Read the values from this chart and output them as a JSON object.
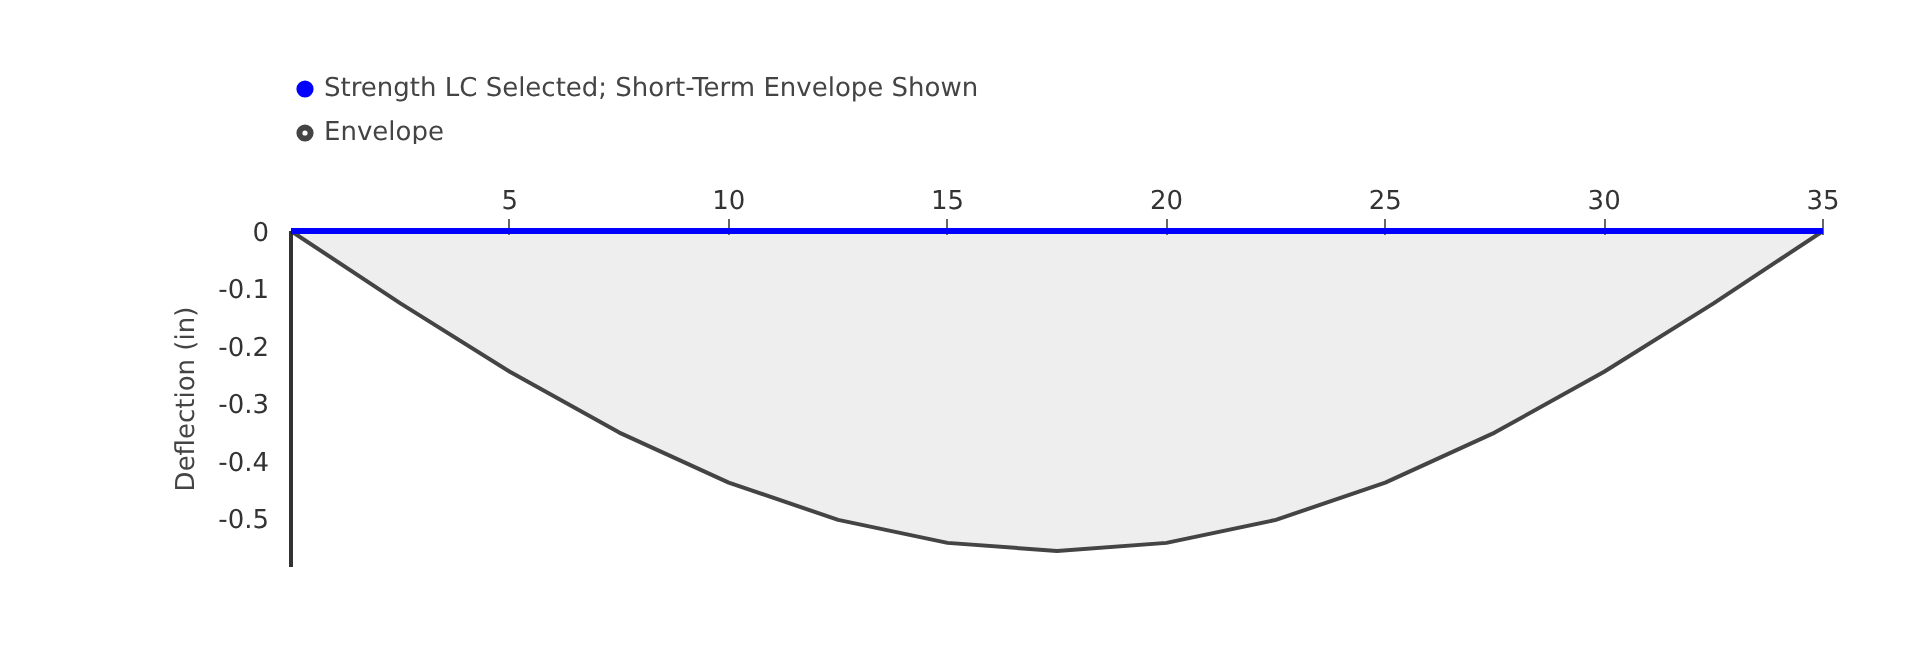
{
  "chart_data": {
    "type": "line",
    "ylabel": "Deflection (in)",
    "xlim": [
      0,
      35
    ],
    "xticks": [
      5,
      10,
      15,
      20,
      25,
      30,
      35
    ],
    "ylim": [
      -0.585,
      0
    ],
    "yticks": [
      0,
      -0.1,
      -0.2,
      -0.3,
      -0.4,
      -0.5
    ],
    "grid": false,
    "legend": "top left",
    "marker": "none",
    "series": [
      {
        "name": "Strength LC Selected; Short-Term Envelope Shown",
        "type": "line",
        "color": "#0000ff",
        "x": [
          0,
          2.5,
          5,
          7.5,
          10,
          12.5,
          15,
          17.5,
          20,
          22.5,
          25,
          27.5,
          30,
          32.5,
          35
        ],
        "values": [
          0,
          0,
          0,
          0,
          0,
          0,
          0,
          0,
          0,
          0,
          0,
          0,
          0,
          0,
          0
        ]
      },
      {
        "name": "Envelope",
        "type": "area",
        "color": "#444444",
        "x": [
          0,
          2.5,
          5,
          7.5,
          10,
          12.5,
          15,
          17.5,
          20,
          22.5,
          25,
          27.5,
          30,
          32.5,
          35
        ],
        "values": [
          0,
          -0.126,
          -0.245,
          -0.351,
          -0.438,
          -0.503,
          -0.543,
          -0.557,
          -0.543,
          -0.503,
          -0.438,
          -0.351,
          -0.245,
          -0.126,
          0
        ]
      }
    ]
  }
}
